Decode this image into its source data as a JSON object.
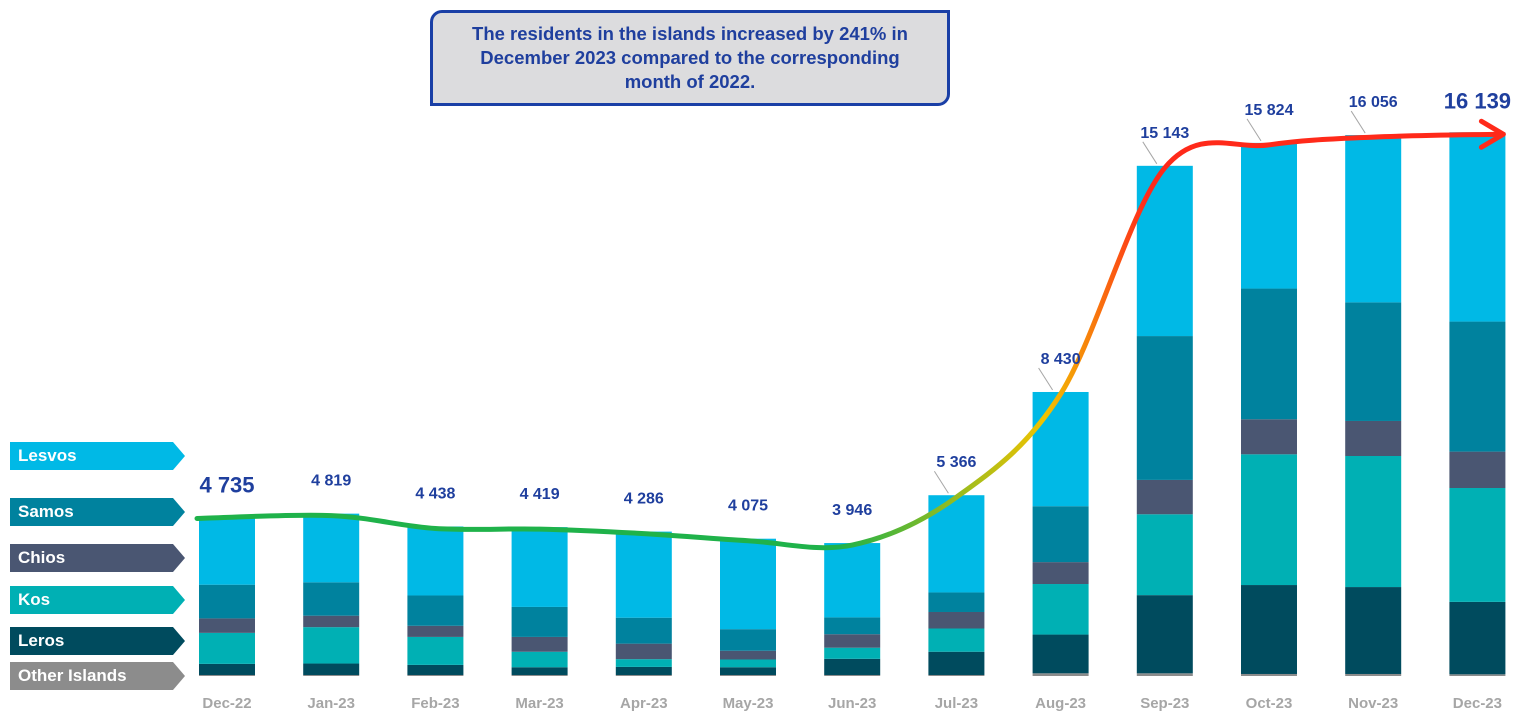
{
  "callout": {
    "text": "The residents in the islands increased by 241% in December 2023 compared to the corresponding month of 2022."
  },
  "colors": {
    "Lesvos": "#00b9e6",
    "Samos": "#00829e",
    "Chios": "#4a5672",
    "Kos": "#00b0b4",
    "Leros": "#004b5e",
    "Other Islands": "#8c8c8c",
    "label": "#1f3f9e",
    "axis_label": "#a6a6a6",
    "trend_start": "#1fb24a",
    "trend_mid": "#f2c300",
    "trend_end": "#ff2a1a"
  },
  "legend": [
    "Lesvos",
    "Samos",
    "Chios",
    "Kos",
    "Leros",
    "Other Islands"
  ],
  "chart_data": {
    "type": "bar",
    "stacked": true,
    "categories": [
      "Dec-22",
      "Jan-23",
      "Feb-23",
      "Mar-23",
      "Apr-23",
      "May-23",
      "Jun-23",
      "Jul-23",
      "Aug-23",
      "Sep-23",
      "Oct-23",
      "Nov-23",
      "Dec-23"
    ],
    "totals": [
      4735,
      4819,
      4438,
      4419,
      4286,
      4075,
      3946,
      5366,
      8430,
      15143,
      15824,
      16056,
      16139
    ],
    "total_labels": [
      "4 735",
      "4 819",
      "4 438",
      "4 419",
      "4 286",
      "4 075",
      "3 946",
      "5 366",
      "8 430",
      "15 143",
      "15 824",
      "16 056",
      "16 139"
    ],
    "series": [
      {
        "name": "Other Islands",
        "values": [
          30,
          30,
          30,
          30,
          30,
          30,
          30,
          30,
          80,
          80,
          60,
          60,
          50
        ]
      },
      {
        "name": "Leros",
        "values": [
          330,
          340,
          300,
          230,
          240,
          230,
          480,
          690,
          1150,
          2320,
          2640,
          2580,
          2150
        ]
      },
      {
        "name": "Kos",
        "values": [
          920,
          1080,
          830,
          460,
          230,
          230,
          330,
          690,
          1500,
          2400,
          3880,
          3890,
          3380
        ]
      },
      {
        "name": "Chios",
        "values": [
          430,
          340,
          330,
          440,
          460,
          260,
          400,
          490,
          650,
          1020,
          1040,
          1040,
          1080
        ]
      },
      {
        "name": "Samos",
        "values": [
          1000,
          990,
          900,
          890,
          770,
          640,
          500,
          580,
          1660,
          4270,
          3880,
          3520,
          3860
        ]
      },
      {
        "name": "Lesvos",
        "values": [
          2025,
          2039,
          2048,
          2369,
          2556,
          2685,
          2206,
          2886,
          3390,
          5053,
          4324,
          4966,
          5619
        ]
      }
    ],
    "ylim": [
      0,
      16800
    ],
    "legend_position": "left",
    "grid": false
  }
}
